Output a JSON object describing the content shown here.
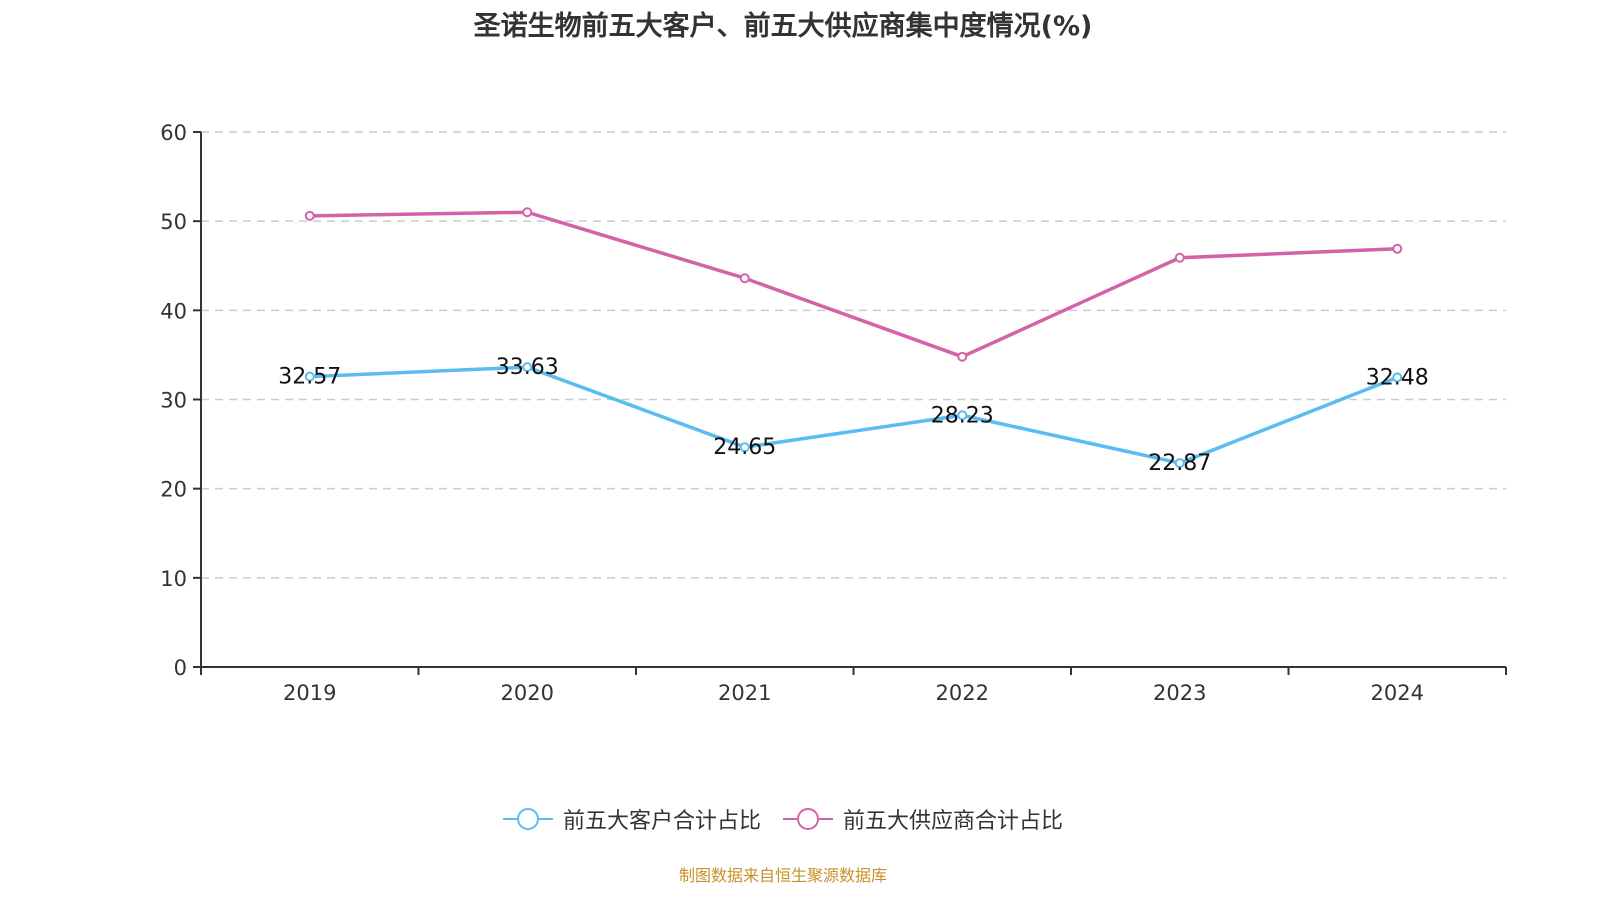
{
  "chart_data": {
    "type": "line",
    "title": "圣诺生物前五大客户、前五大供应商集中度情况(%)",
    "categories": [
      "2019",
      "2020",
      "2021",
      "2022",
      "2023",
      "2024"
    ],
    "ylim": [
      0,
      60
    ],
    "yticks": [
      "0",
      "10",
      "20",
      "30",
      "40",
      "50",
      "60"
    ],
    "grid": true,
    "legend_position": "bottom",
    "series": [
      {
        "name": "前五大客户合计占比",
        "color": "#5bbcf0",
        "values": [
          32.57,
          33.63,
          24.65,
          28.23,
          22.87,
          32.48
        ],
        "labels": [
          "32.57",
          "33.63",
          "24.65",
          "28.23",
          "22.87",
          "32.48"
        ]
      },
      {
        "name": "前五大供应商合计占比",
        "color": "#d462a8",
        "values": [
          50.6,
          51.0,
          43.6,
          34.8,
          45.9,
          46.9
        ]
      }
    ]
  },
  "source": "制图数据来自恒生聚源数据库"
}
